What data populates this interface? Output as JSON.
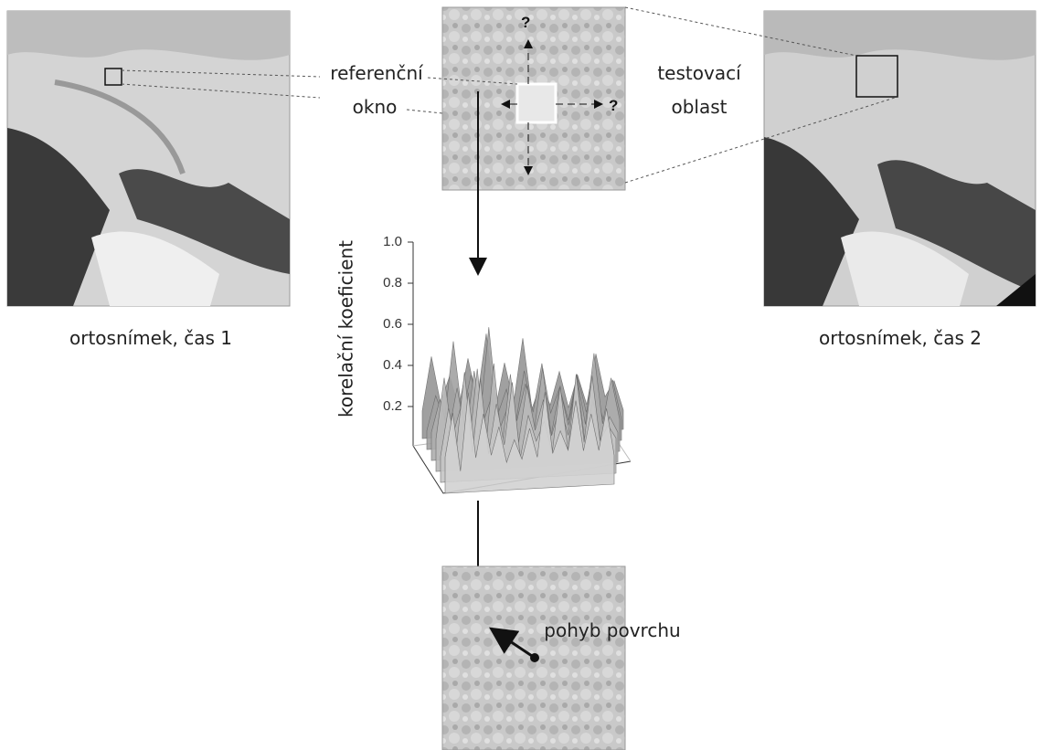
{
  "captions": {
    "left": "ortosnímek, čas 1",
    "right": "ortosnímek, čas 2"
  },
  "labels": {
    "reference_window": [
      "referenční",
      "okno"
    ],
    "test_area": [
      "testovací",
      "oblast"
    ],
    "question_marks": [
      "?",
      "?"
    ],
    "surface_motion": "pohyb povrchu"
  },
  "plot": {
    "y_label": "korelační koeficient",
    "y_ticks": [
      "1.0",
      "0.8",
      "0.6",
      "0.4",
      "0.2"
    ]
  }
}
